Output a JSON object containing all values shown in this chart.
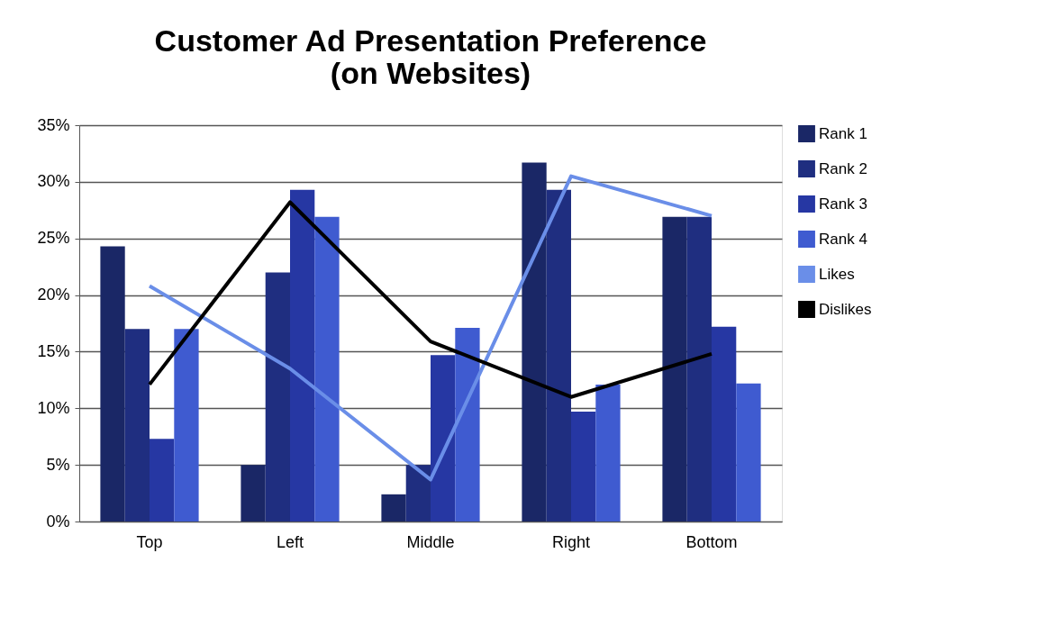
{
  "chart_data": {
    "type": "bar",
    "title": "Customer Ad Presentation Preference\n(on Websites)",
    "categories": [
      "Top",
      "Left",
      "Middle",
      "Right",
      "Bottom"
    ],
    "series": [
      {
        "name": "Rank 1",
        "color": "#1a2766",
        "values": [
          24.3,
          5.0,
          2.4,
          31.7,
          26.9
        ]
      },
      {
        "name": "Rank 2",
        "color": "#1f2e80",
        "values": [
          17.0,
          22.0,
          5.0,
          29.3,
          26.9
        ]
      },
      {
        "name": "Rank 3",
        "color": "#2637a3",
        "values": [
          7.3,
          29.3,
          14.7,
          9.7,
          17.2
        ]
      },
      {
        "name": "Rank 4",
        "color": "#3f5bd0",
        "values": [
          17.0,
          26.9,
          17.1,
          12.1,
          12.2
        ]
      },
      {
        "name": "Likes",
        "type": "line",
        "color": "#6a8ee8",
        "values": [
          20.8,
          13.5,
          3.7,
          30.5,
          27.0
        ]
      },
      {
        "name": "Dislikes",
        "type": "line",
        "color": "#000000",
        "values": [
          12.1,
          28.2,
          15.9,
          11.0,
          14.8
        ]
      }
    ],
    "ylim": [
      0,
      35
    ],
    "yticks": [
      {
        "value": 0,
        "label": "0%"
      },
      {
        "value": 5,
        "label": "5%"
      },
      {
        "value": 10,
        "label": "10%"
      },
      {
        "value": 15,
        "label": "15%"
      },
      {
        "value": 20,
        "label": "20%"
      },
      {
        "value": 25,
        "label": "25%"
      },
      {
        "value": 30,
        "label": "30%"
      },
      {
        "value": 35,
        "label": "35%"
      }
    ],
    "grid": "y",
    "legend": "right",
    "marker": "none",
    "line_style": "solid"
  }
}
